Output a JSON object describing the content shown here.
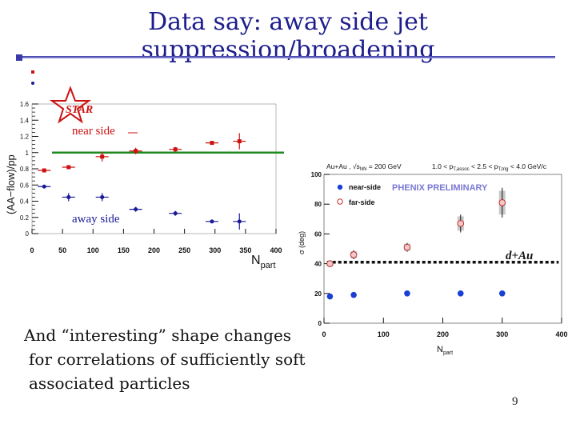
{
  "slide": {
    "title": "Data say: away side jet suppression/broadening",
    "body_lines": [
      "And “interesting” shape changes",
      "for correlations of sufficiently soft",
      "associated particles"
    ],
    "page_number": "9"
  },
  "chart_data": [
    {
      "type": "scatter",
      "experiment_label": "STAR",
      "ylabel": "(AA−flow)/pp",
      "xlabel": "N",
      "xlabel_sub": "part",
      "xlim": [
        0,
        400
      ],
      "ylim": [
        0,
        1.6
      ],
      "x_ticks": [
        0,
        50,
        100,
        150,
        200,
        250,
        300,
        350,
        400
      ],
      "y_ticks": [
        "0",
        "0.2",
        "0.4",
        "0.6",
        "0.8",
        "1",
        "1.2",
        "1.4",
        "1.6"
      ],
      "reference_line_y": 1.0,
      "annotations": [
        "near side",
        "away side"
      ],
      "colors": {
        "near_side": "#cc1111",
        "away_side": "#1a1a99",
        "reference": "#1f8a1f"
      },
      "series": [
        {
          "key": "near",
          "x": [
            20,
            60,
            115,
            170,
            235,
            295,
            340
          ],
          "y": [
            0.78,
            0.82,
            0.95,
            1.02,
            1.04,
            1.12,
            1.14
          ],
          "yerr": [
            0.01,
            0.01,
            0.06,
            0.04,
            0.03,
            0.02,
            0.1
          ]
        },
        {
          "key": "away",
          "x": [
            20,
            60,
            115,
            170,
            235,
            295,
            340
          ],
          "y": [
            0.58,
            0.45,
            0.45,
            0.3,
            0.25,
            0.15,
            0.15
          ],
          "yerr": [
            0.01,
            0.05,
            0.05,
            0.03,
            0.03,
            0.02,
            0.1
          ]
        }
      ]
    },
    {
      "type": "scatter",
      "header": "Au+Au , √s",
      "header_sub": "NN",
      "header_rest": " = 200 GeV",
      "header_cut": "1.0 < p",
      "header_cut_sub": "T,assoc",
      "header_cut_mid": " < 2.5 < p",
      "header_cut_sub2": "T,trig",
      "header_cut_end": " < 4.0 GeV/c",
      "watermark": "PHENIX PRELIMINARY",
      "system_label": "d+Au",
      "ylabel": "σ (deg)",
      "xlabel": "N",
      "xlabel_sub": "part",
      "xlim": [
        0,
        400
      ],
      "ylim": [
        0,
        100
      ],
      "x_ticks": [
        0,
        100,
        200,
        300,
        400
      ],
      "y_ticks": [
        0,
        20,
        40,
        60,
        80,
        100
      ],
      "reference_line_y": 41,
      "colors": {
        "near": "#1a3fd6",
        "far_fill": "#f2c8c8",
        "far_stroke": "#c03030",
        "sys_box": "#c8c8c8"
      },
      "series": [
        {
          "name": "near-side",
          "x": [
            10,
            50,
            140,
            230,
            300
          ],
          "y": [
            18,
            19,
            20,
            20,
            20
          ]
        },
        {
          "name": "far-side",
          "x": [
            10,
            50,
            140,
            230,
            300
          ],
          "y": [
            40,
            46,
            51,
            67,
            81
          ],
          "yerr": [
            2,
            3,
            3,
            6,
            10
          ]
        }
      ]
    }
  ]
}
